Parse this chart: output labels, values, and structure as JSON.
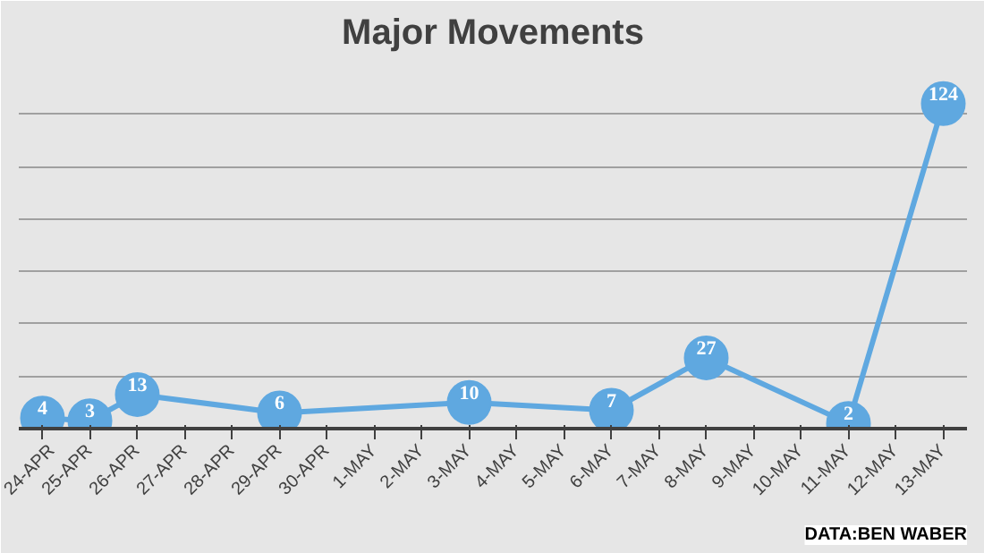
{
  "chart_data": {
    "type": "line",
    "title": "Major Movements",
    "categories": [
      "24-APR",
      "25-APR",
      "26-APR",
      "27-APR",
      "28-APR",
      "29-APR",
      "30-APR",
      "1-MAY",
      "2-MAY",
      "3-MAY",
      "4-MAY",
      "5-MAY",
      "6-MAY",
      "7-MAY",
      "8-MAY",
      "9-MAY",
      "10-MAY",
      "11-MAY",
      "12-MAY",
      "13-MAY"
    ],
    "series": [
      {
        "color": "#5fa8e0",
        "values": [
          4,
          3,
          13,
          null,
          null,
          6,
          null,
          null,
          null,
          10,
          null,
          null,
          7,
          null,
          27,
          null,
          null,
          2,
          null,
          124
        ]
      }
    ],
    "ylim": [
      0,
      140
    ],
    "yticks": [
      {
        "value": 0,
        "label": null
      },
      {
        "value": 20,
        "label": null
      },
      {
        "value": 40,
        "label": null
      },
      {
        "value": 60,
        "label": null
      },
      {
        "value": 80,
        "label": null
      },
      {
        "value": 100,
        "label": null
      },
      {
        "value": 120,
        "label": null
      },
      {
        "value": 140,
        "label": null
      }
    ],
    "tick_labels": "x",
    "grid": "y",
    "marker": "circle",
    "line_style": "solid",
    "data_labels": true,
    "annotations": [
      "DATA:BEN WABER"
    ]
  }
}
